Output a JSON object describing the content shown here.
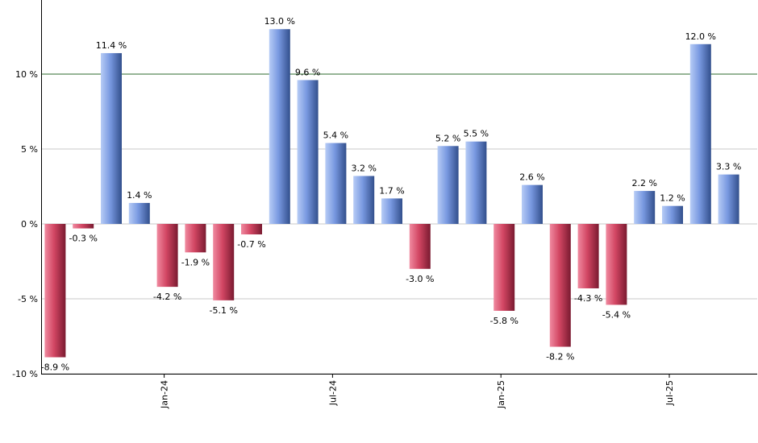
{
  "chart_data": {
    "type": "bar",
    "title": "",
    "xlabel": "",
    "ylabel": "",
    "ylim": [
      -10,
      15
    ],
    "y_ticks": [
      {
        "value": -10,
        "label": "-10 %"
      },
      {
        "value": -5,
        "label": "-5 %"
      },
      {
        "value": 0,
        "label": "0 %"
      },
      {
        "value": 5,
        "label": "5 %"
      },
      {
        "value": 10,
        "label": "10 %"
      }
    ],
    "reference_line": {
      "value": 10,
      "color": "#2e6b2e"
    },
    "grid": true,
    "legend": "none",
    "colors": {
      "positive": "#6f8fd8",
      "negative": "#c93a57"
    },
    "x_ticks": [
      {
        "index": 4,
        "label": "Jan-24"
      },
      {
        "index": 10,
        "label": "Jul-24"
      },
      {
        "index": 16,
        "label": "Jan-25"
      },
      {
        "index": 22,
        "label": "Jul-25"
      }
    ],
    "values": [
      -8.9,
      -0.3,
      11.4,
      1.4,
      -4.2,
      -1.9,
      -5.1,
      -0.7,
      13.0,
      9.6,
      5.4,
      3.2,
      1.7,
      -3.0,
      5.2,
      5.5,
      -5.8,
      2.6,
      -8.2,
      -4.3,
      -5.4,
      2.2,
      1.2,
      12.0,
      3.3
    ],
    "data_labels": [
      "-8.9 %",
      "-0.3 %",
      "11.4 %",
      "1.4 %",
      "-4.2 %",
      "-1.9 %",
      "-5.1 %",
      "-0.7 %",
      "13.0 %",
      "9.6 %",
      "5.4 %",
      "3.2 %",
      "1.7 %",
      "-3.0 %",
      "5.2 %",
      "5.5 %",
      "-5.8 %",
      "2.6 %",
      "-8.2 %",
      "-4.3 %",
      "-5.4 %",
      "2.2 %",
      "1.2 %",
      "12.0 %",
      "3.3 %"
    ]
  }
}
